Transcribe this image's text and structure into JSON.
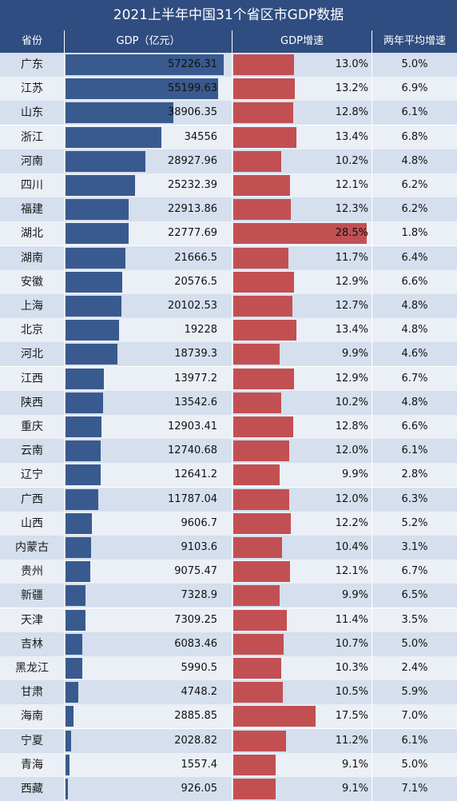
{
  "chart_data": {
    "type": "table",
    "title": "2021上半年中国31个省区市GDP数据",
    "columns": [
      "省份",
      "GDP（亿元）",
      "GDP增速",
      "两年平均增速"
    ],
    "rows": [
      {
        "province": "广东",
        "gdp": "57226.31",
        "growth": "13.0%",
        "avg2y": "5.0%"
      },
      {
        "province": "江苏",
        "gdp": "55199.63",
        "growth": "13.2%",
        "avg2y": "6.9%"
      },
      {
        "province": "山东",
        "gdp": "38906.35",
        "growth": "12.8%",
        "avg2y": "6.1%"
      },
      {
        "province": "浙江",
        "gdp": "34556",
        "growth": "13.4%",
        "avg2y": "6.8%"
      },
      {
        "province": "河南",
        "gdp": "28927.96",
        "growth": "10.2%",
        "avg2y": "4.8%"
      },
      {
        "province": "四川",
        "gdp": "25232.39",
        "growth": "12.1%",
        "avg2y": "6.2%"
      },
      {
        "province": "福建",
        "gdp": "22913.86",
        "growth": "12.3%",
        "avg2y": "6.2%"
      },
      {
        "province": "湖北",
        "gdp": "22777.69",
        "growth": "28.5%",
        "avg2y": "1.8%"
      },
      {
        "province": "湖南",
        "gdp": "21666.5",
        "growth": "11.7%",
        "avg2y": "6.4%"
      },
      {
        "province": "安徽",
        "gdp": "20576.5",
        "growth": "12.9%",
        "avg2y": "6.6%"
      },
      {
        "province": "上海",
        "gdp": "20102.53",
        "growth": "12.7%",
        "avg2y": "4.8%"
      },
      {
        "province": "北京",
        "gdp": "19228",
        "growth": "13.4%",
        "avg2y": "4.8%"
      },
      {
        "province": "河北",
        "gdp": "18739.3",
        "growth": "9.9%",
        "avg2y": "4.6%"
      },
      {
        "province": "江西",
        "gdp": "13977.2",
        "growth": "12.9%",
        "avg2y": "6.7%"
      },
      {
        "province": "陕西",
        "gdp": "13542.6",
        "growth": "10.2%",
        "avg2y": "4.8%"
      },
      {
        "province": "重庆",
        "gdp": "12903.41",
        "growth": "12.8%",
        "avg2y": "6.6%"
      },
      {
        "province": "云南",
        "gdp": "12740.68",
        "growth": "12.0%",
        "avg2y": "6.1%"
      },
      {
        "province": "辽宁",
        "gdp": "12641.2",
        "growth": "9.9%",
        "avg2y": "2.8%"
      },
      {
        "province": "广西",
        "gdp": "11787.04",
        "growth": "12.0%",
        "avg2y": "6.3%"
      },
      {
        "province": "山西",
        "gdp": "9606.7",
        "growth": "12.2%",
        "avg2y": "5.2%"
      },
      {
        "province": "内蒙古",
        "gdp": "9103.6",
        "growth": "10.4%",
        "avg2y": "3.1%"
      },
      {
        "province": "贵州",
        "gdp": "9075.47",
        "growth": "12.1%",
        "avg2y": "6.7%"
      },
      {
        "province": "新疆",
        "gdp": "7328.9",
        "growth": "9.9%",
        "avg2y": "6.5%"
      },
      {
        "province": "天津",
        "gdp": "7309.25",
        "growth": "11.4%",
        "avg2y": "3.5%"
      },
      {
        "province": "吉林",
        "gdp": "6083.46",
        "growth": "10.7%",
        "avg2y": "5.0%"
      },
      {
        "province": "黑龙江",
        "gdp": "5990.5",
        "growth": "10.3%",
        "avg2y": "2.4%"
      },
      {
        "province": "甘肃",
        "gdp": "4748.2",
        "growth": "10.5%",
        "avg2y": "5.9%"
      },
      {
        "province": "海南",
        "gdp": "2885.85",
        "growth": "17.5%",
        "avg2y": "7.0%"
      },
      {
        "province": "宁夏",
        "gdp": "2028.82",
        "growth": "11.2%",
        "avg2y": "6.1%"
      },
      {
        "province": "青海",
        "gdp": "1557.4",
        "growth": "9.1%",
        "avg2y": "5.0%"
      },
      {
        "province": "西藏",
        "gdp": "926.05",
        "growth": "9.1%",
        "avg2y": "7.1%"
      }
    ],
    "gdp_axis_max": 60000,
    "growth_axis_max": 29.5
  },
  "colors": {
    "header": "#2f4d80",
    "gdp_bar": "#395a8e",
    "growth_bar": "#c25052",
    "row_odd": "#d5dfee",
    "row_even": "#ebeff6"
  }
}
